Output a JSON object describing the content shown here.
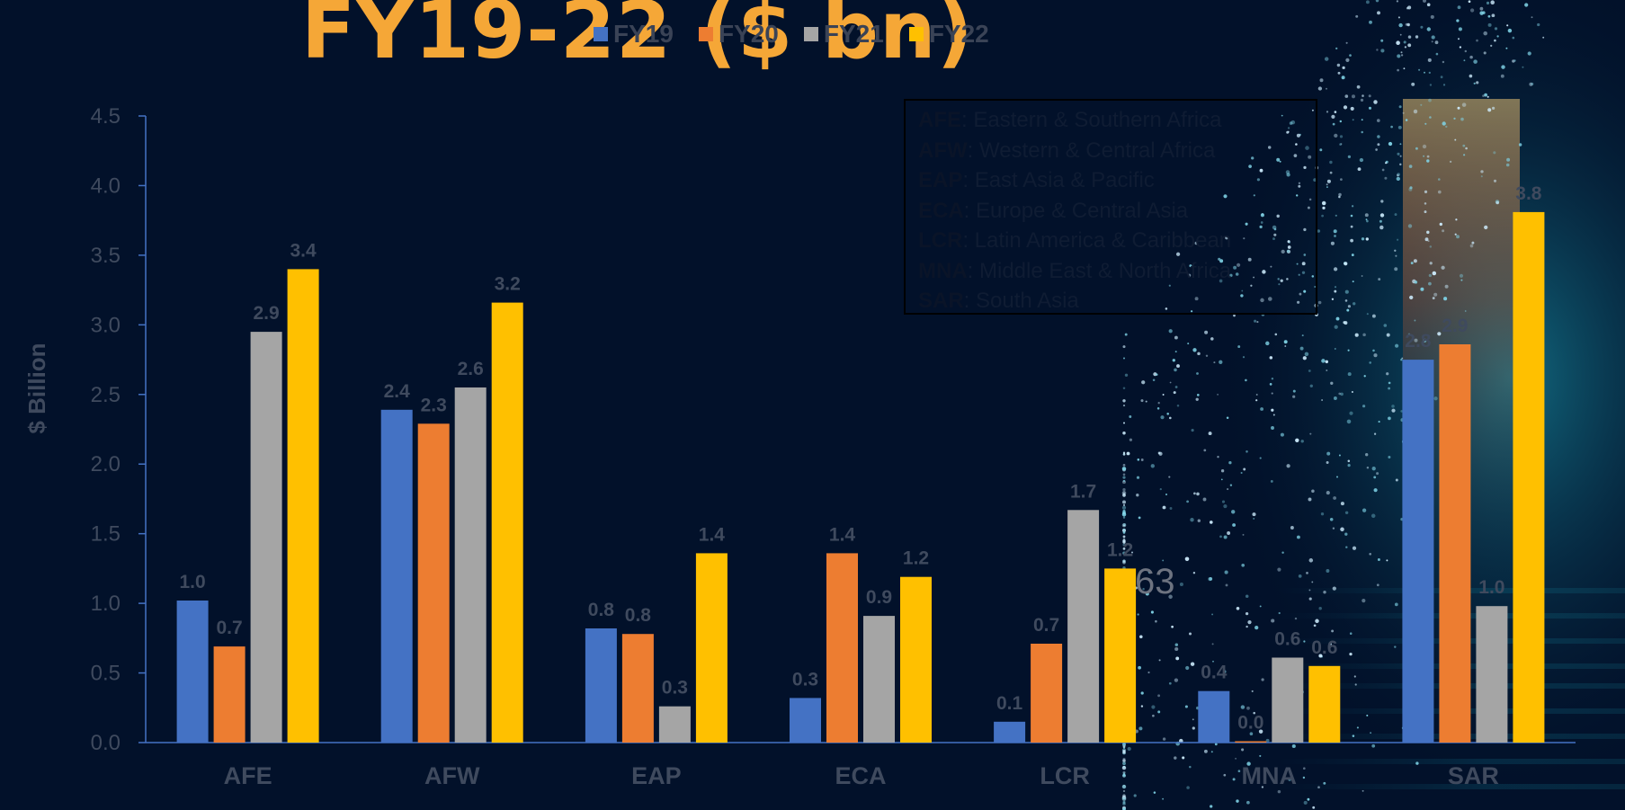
{
  "title": "FY19-22 ($ bn)",
  "stray_text": "63",
  "legend_position": "top",
  "colors": {
    "background": "#02112a",
    "title": "#f5a737",
    "axis": "#4472c4",
    "label": "#3f4a5e"
  },
  "region_key": [
    {
      "code": "AFE",
      "name": ": Eastern & Southern Africa"
    },
    {
      "code": "AFW",
      "name": ": Western & Central Africa"
    },
    {
      "code": "EAP",
      "name": ":  East Asia & Pacific"
    },
    {
      "code": "ECA",
      "name": ":  Europe & Central Asia"
    },
    {
      "code": "LCR",
      "name": ":  Latin  America  &  Caribbean"
    },
    {
      "code": "MNA",
      "name": ": Middle East & North Africa"
    },
    {
      "code": "SAR",
      "name": ":  South Asia"
    }
  ],
  "chart_data": {
    "type": "bar",
    "categories": [
      "AFE",
      "AFW",
      "EAP",
      "ECA",
      "LCR",
      "MNA",
      "SAR"
    ],
    "series": [
      {
        "name": "FY19",
        "color": "#4472c4",
        "values": [
          1.02,
          2.39,
          0.82,
          0.32,
          0.15,
          0.37,
          2.75
        ],
        "labels": [
          "1.0",
          "2.4",
          "0.8",
          "0.3",
          "0.1",
          "0.4",
          "2.8"
        ]
      },
      {
        "name": "FY20",
        "color": "#ed7d31",
        "values": [
          0.69,
          2.29,
          0.78,
          1.36,
          0.71,
          0.01,
          2.86
        ],
        "labels": [
          "0.7",
          "2.3",
          "0.8",
          "1.4",
          "0.7",
          "0.0",
          "2.9"
        ]
      },
      {
        "name": "FY21",
        "color": "#a5a5a5",
        "values": [
          2.95,
          2.55,
          0.26,
          0.91,
          1.67,
          0.61,
          0.98
        ],
        "labels": [
          "2.9",
          "2.6",
          "0.3",
          "0.9",
          "1.7",
          "0.6",
          "1.0"
        ]
      },
      {
        "name": "FY22",
        "color": "#ffc000",
        "values": [
          3.4,
          3.16,
          1.36,
          1.19,
          1.25,
          0.55,
          3.81
        ],
        "labels": [
          "3.4",
          "3.2",
          "1.4",
          "1.2",
          "1.2",
          "0.6",
          "3.8"
        ]
      }
    ],
    "title": "FY19-22 ($ bn)",
    "xlabel": "",
    "ylabel": "$ Billion",
    "ylim": [
      0,
      4.5
    ],
    "yticks": [
      "0.0",
      "0.5",
      "1.0",
      "1.5",
      "2.0",
      "2.5",
      "3.0",
      "3.5",
      "4.0",
      "4.5"
    ],
    "grid": false
  }
}
